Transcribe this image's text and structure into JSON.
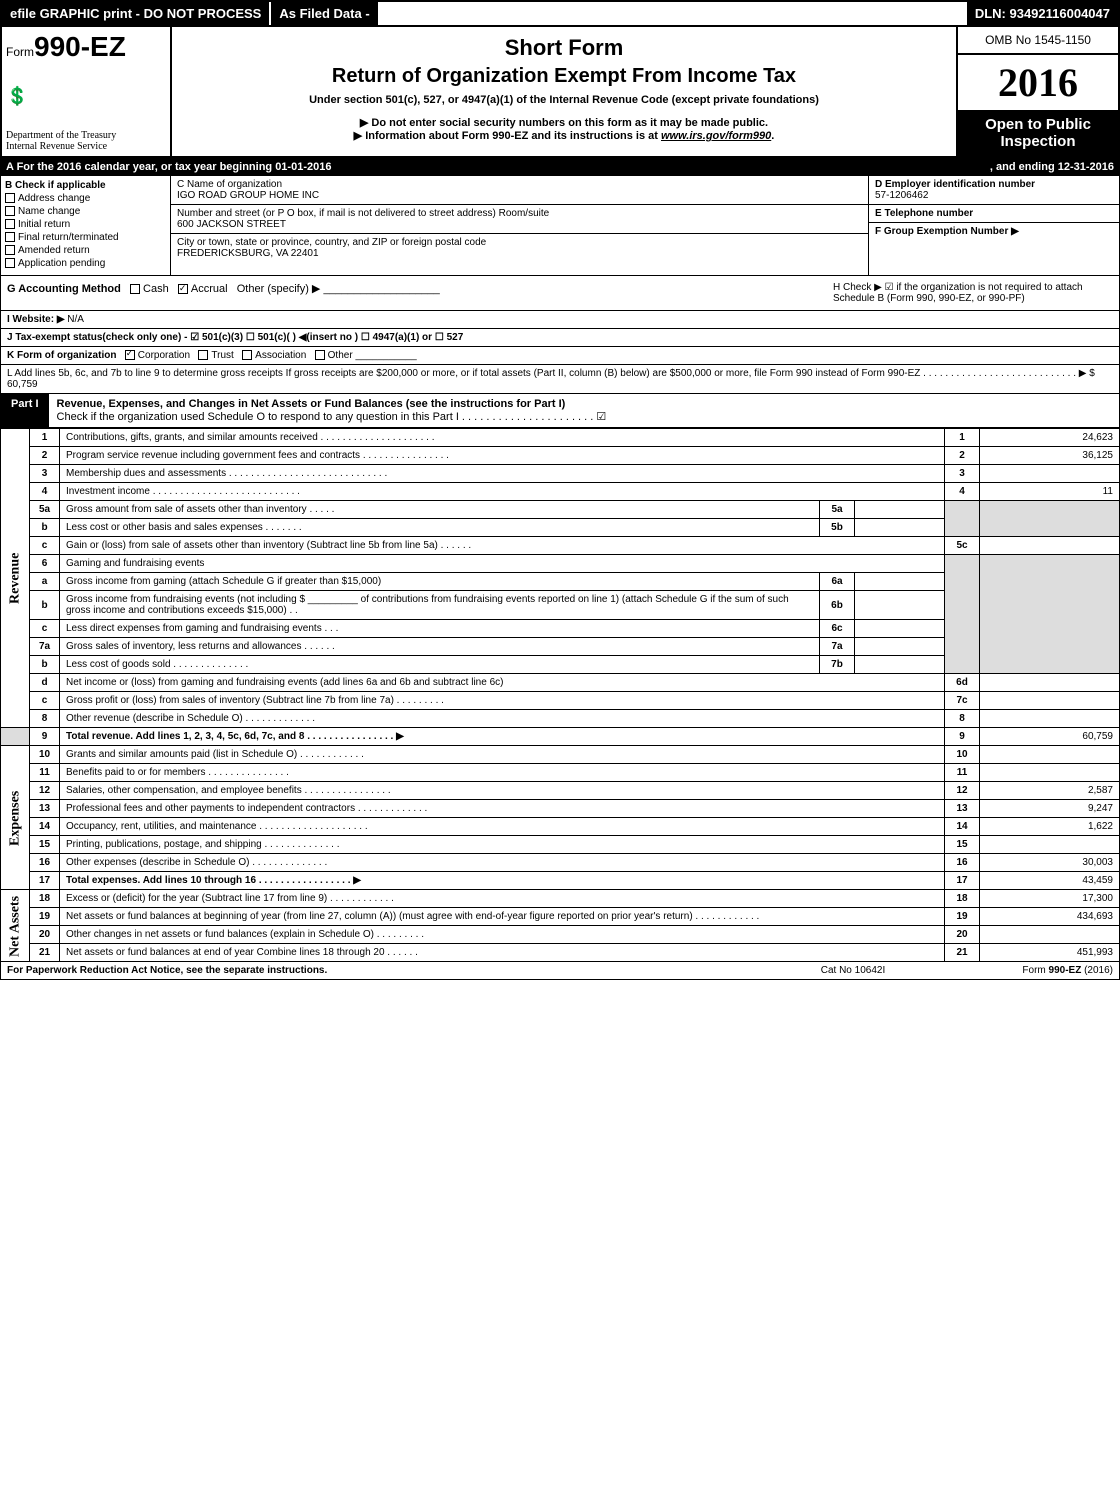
{
  "header_bar": {
    "left": "efile GRAPHIC print - DO NOT PROCESS",
    "mid": "As Filed Data -",
    "right": "DLN: 93492116004047"
  },
  "top": {
    "form_prefix": "Form",
    "form_number": "990-EZ",
    "short_form": "Short Form",
    "return_title": "Return of Organization Exempt From Income Tax",
    "under_section": "Under section 501(c), 527, or 4947(a)(1) of the Internal Revenue Code (except private foundations)",
    "do_not_enter": "▶ Do not enter social security numbers on this form as it may be made public.",
    "info_about": "▶ Information about Form 990-EZ and its instructions is at ",
    "info_link": "www.irs.gov/form990",
    "dept1": "Department of the Treasury",
    "dept2": "Internal Revenue Service",
    "omb": "OMB No 1545-1150",
    "year": "2016",
    "open_public": "Open to Public Inspection"
  },
  "row_a": {
    "left": "A  For the 2016 calendar year, or tax year beginning 01-01-2016",
    "right": ", and ending 12-31-2016"
  },
  "b_col": {
    "header": "B  Check if applicable",
    "items": [
      "Address change",
      "Name change",
      "Initial return",
      "Final return/terminated",
      "Amended return",
      "Application pending"
    ]
  },
  "c_col": {
    "c_label": "C Name of organization",
    "c_value": "IGO ROAD GROUP HOME INC",
    "addr_label": "Number and street (or P O box, if mail is not delivered to street address)  Room/suite",
    "addr_value": "600 JACKSON STREET",
    "city_label": "City or town, state or province, country, and ZIP or foreign postal code",
    "city_value": "FREDERICKSBURG, VA  22401"
  },
  "d_col": {
    "d_label": "D Employer identification number",
    "d_value": "57-1206462",
    "e_label": "E Telephone number",
    "e_value": "",
    "f_label": "F Group Exemption Number    ▶",
    "f_value": ""
  },
  "g_row": {
    "label": "G Accounting Method",
    "cash": "Cash",
    "accrual": "Accrual",
    "other": "Other (specify) ▶"
  },
  "h_row": {
    "text": "H  Check ▶  ☑ if the organization is not required to attach Schedule B (Form 990, 990-EZ, or 990-PF)"
  },
  "i_row": {
    "label": "I Website: ▶",
    "value": "N/A"
  },
  "j_row": {
    "text": "J Tax-exempt status(check only one) - ☑ 501(c)(3) ☐ 501(c)( ) ◀(insert no ) ☐ 4947(a)(1) or ☐ 527"
  },
  "k_row": {
    "label": "K Form of organization",
    "corp": "Corporation",
    "trust": "Trust",
    "assoc": "Association",
    "other": "Other"
  },
  "l_row": {
    "text": "L Add lines 5b, 6c, and 7b to line 9 to determine gross receipts If gross receipts are $200,000 or more, or if total assets (Part II, column (B) below) are $500,000 or more, file Form 990 instead of Form 990-EZ . . . . . . . . . . . . . . . . . . . . . . . . . . . . ▶ $ 60,759"
  },
  "part1": {
    "label": "Part I",
    "title": "Revenue, Expenses, and Changes in Net Assets or Fund Balances (see the instructions for Part I)",
    "check_text": "Check if the organization used Schedule O to respond to any question in this Part I . . . . . . . . . . . . . . . . . . . . . . ☑"
  },
  "lines": {
    "l1": {
      "num": "1",
      "desc": "Contributions, gifts, grants, and similar amounts received . . . . . . . . . . . . . . . . . . . . .",
      "amt_num": "1",
      "amt": "24,623"
    },
    "l2": {
      "num": "2",
      "desc": "Program service revenue including government fees and contracts . . . . . . . . . . . . . . . .",
      "amt_num": "2",
      "amt": "36,125"
    },
    "l3": {
      "num": "3",
      "desc": "Membership dues and assessments . . . . . . . . . . . . . . . . . . . . . . . . . . . . .",
      "amt_num": "3",
      "amt": ""
    },
    "l4": {
      "num": "4",
      "desc": "Investment income . . . . . . . . . . . . . . . . . . . . . . . . . . .",
      "amt_num": "4",
      "amt": "11"
    },
    "l5a": {
      "num": "5a",
      "desc": "Gross amount from sale of assets other than inventory . . . . .",
      "sub_num": "5a",
      "sub": ""
    },
    "l5b": {
      "num": "b",
      "desc": "Less  cost or other basis and sales expenses . . . . . . .",
      "sub_num": "5b",
      "sub": ""
    },
    "l5c": {
      "num": "c",
      "desc": "Gain or (loss) from sale of assets other than inventory (Subtract line 5b from line 5a) . . . . . .",
      "amt_num": "5c",
      "amt": ""
    },
    "l6": {
      "num": "6",
      "desc": "Gaming and fundraising events"
    },
    "l6a": {
      "num": "a",
      "desc": "Gross income from gaming (attach Schedule G if greater than $15,000)",
      "sub_num": "6a",
      "sub": ""
    },
    "l6b": {
      "num": "b",
      "desc_pre": "Gross income from fundraising events (not including $",
      "desc_mid": "of contributions from fundraising events reported on line 1) (attach Schedule G if the sum of such gross income and contributions exceeds $15,000)     . .",
      "sub_num": "6b",
      "sub": ""
    },
    "l6c": {
      "num": "c",
      "desc": "Less  direct expenses from gaming and fundraising events       . . .",
      "sub_num": "6c",
      "sub": ""
    },
    "l6d": {
      "num": "d",
      "desc": "Net income or (loss) from gaming and fundraising events (add lines 6a and 6b and subtract line 6c)",
      "amt_num": "6d",
      "amt": ""
    },
    "l7a": {
      "num": "7a",
      "desc": "Gross sales of inventory, less returns and allowances . . . . . .",
      "sub_num": "7a",
      "sub": ""
    },
    "l7b": {
      "num": "b",
      "desc": "Less  cost of goods sold          . . . . . . . . . . . . . .",
      "sub_num": "7b",
      "sub": ""
    },
    "l7c": {
      "num": "c",
      "desc": "Gross profit or (loss) from sales of inventory (Subtract line 7b from line 7a) . . . . . . . . .",
      "amt_num": "7c",
      "amt": ""
    },
    "l8": {
      "num": "8",
      "desc": "Other revenue (describe in Schedule O)                           . . . . . . . . . . . . .",
      "amt_num": "8",
      "amt": ""
    },
    "l9": {
      "num": "9",
      "desc": "Total revenue. Add lines 1, 2, 3, 4, 5c, 6d, 7c, and 8 . . . . . . . . . . . . . . . .  ▶",
      "amt_num": "9",
      "amt": "60,759"
    },
    "l10": {
      "num": "10",
      "desc": "Grants and similar amounts paid (list in Schedule O)           . . . . . . . . . . . .",
      "amt_num": "10",
      "amt": ""
    },
    "l11": {
      "num": "11",
      "desc": "Benefits paid to or for members                        . . . . . . . . . . . . . . .",
      "amt_num": "11",
      "amt": ""
    },
    "l12": {
      "num": "12",
      "desc": "Salaries, other compensation, and employee benefits . . . . . . . . . . . . . . . .",
      "amt_num": "12",
      "amt": "2,587"
    },
    "l13": {
      "num": "13",
      "desc": "Professional fees and other payments to independent contractors . . . . . . . . . . . . .",
      "amt_num": "13",
      "amt": "9,247"
    },
    "l14": {
      "num": "14",
      "desc": "Occupancy, rent, utilities, and maintenance . . . . . . . . . . . . . . . . . . . .",
      "amt_num": "14",
      "amt": "1,622"
    },
    "l15": {
      "num": "15",
      "desc": "Printing, publications, postage, and shipping             . . . . . . . . . . . . . .",
      "amt_num": "15",
      "amt": ""
    },
    "l16": {
      "num": "16",
      "desc": "Other expenses (describe in Schedule O)                  . . . . . . . . . . . . . .",
      "amt_num": "16",
      "amt": "30,003"
    },
    "l17": {
      "num": "17",
      "desc": "Total expenses. Add lines 10 through 16         . . . . . . . . . . . . . . . . .  ▶",
      "amt_num": "17",
      "amt": "43,459"
    },
    "l18": {
      "num": "18",
      "desc": "Excess or (deficit) for the year (Subtract line 17 from line 9)      . . . . . . . . . . . .",
      "amt_num": "18",
      "amt": "17,300"
    },
    "l19": {
      "num": "19",
      "desc": "Net assets or fund balances at beginning of year (from line 27, column (A)) (must agree with end-of-year figure reported on prior year's return)                . . . . . . . . . . . .",
      "amt_num": "19",
      "amt": "434,693"
    },
    "l20": {
      "num": "20",
      "desc": "Other changes in net assets or fund balances (explain in Schedule O)     . . . . . . . . .",
      "amt_num": "20",
      "amt": ""
    },
    "l21": {
      "num": "21",
      "desc": "Net assets or fund balances at end of year  Combine lines 18 through 20        . . . . . .",
      "amt_num": "21",
      "amt": "451,993"
    }
  },
  "vert_labels": {
    "revenue": "Revenue",
    "expenses": "Expenses",
    "net_assets": "Net Assets"
  },
  "footer": {
    "left": "For Paperwork Reduction Act Notice, see the separate instructions.",
    "mid": "Cat No  10642I",
    "right": "Form 990-EZ (2016)"
  },
  "styling": {
    "background_color": "#ffffff",
    "text_color": "#000000",
    "header_bg": "#000000",
    "header_fg": "#ffffff",
    "shade_bg": "#dddddd",
    "border_color": "#000000",
    "font_family": "Arial, Helvetica, sans-serif",
    "base_font_size": 11,
    "small_font_size": 10,
    "title_font_size": 22,
    "year_font_family": "Times New Roman, serif",
    "year_font_size": 40,
    "form_num_font_size": 28
  }
}
